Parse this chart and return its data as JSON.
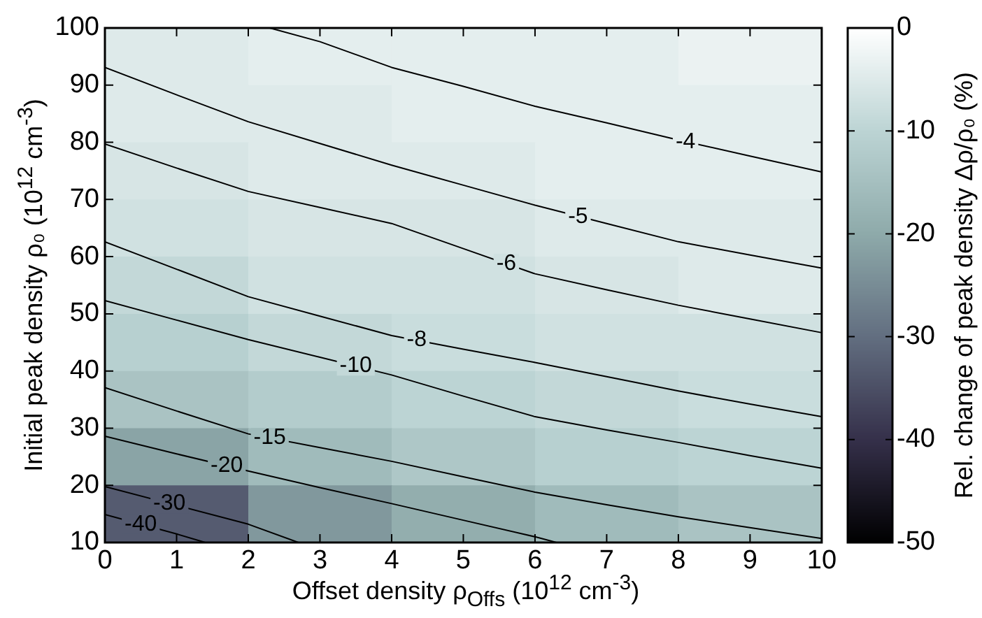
{
  "chart_data": {
    "type": "heatmap",
    "xlabel": "Offset density ρ$_{Offs}$ (10$^{12}$ cm$^{-3}$)",
    "ylabel": "Initial peak density ρ₀ (10$^{12}$ cm$^{-3}$)",
    "clabel": "Rel. change of peak density Δρ/ρ₀ (%)",
    "x": [
      1,
      3,
      5,
      7,
      9
    ],
    "y": [
      95,
      85,
      75,
      65,
      55,
      45,
      35,
      25,
      15
    ],
    "cells": [
      [
        -5,
        -4,
        -4,
        -4,
        -3
      ],
      [
        -5,
        -5,
        -4,
        -4,
        -4
      ],
      [
        -6,
        -5,
        -5,
        -4,
        -4
      ],
      [
        -7,
        -6,
        -6,
        -5,
        -5
      ],
      [
        -9,
        -7,
        -7,
        -6,
        -5
      ],
      [
        -11,
        -9,
        -8,
        -7,
        -7
      ],
      [
        -14,
        -12,
        -10,
        -9,
        -8
      ],
      [
        -21,
        -16,
        -13,
        -11,
        -10
      ],
      [
        -33,
        -23,
        -19,
        -16,
        -14
      ]
    ],
    "clim": [
      -50,
      0
    ],
    "cticks": [
      0,
      -10,
      -20,
      -30,
      -40,
      -50
    ],
    "xlim": [
      0,
      10
    ],
    "xticks": [
      0,
      1,
      2,
      3,
      4,
      5,
      6,
      7,
      8,
      9,
      10
    ],
    "ylim": [
      10,
      100
    ],
    "yticks": [
      10,
      20,
      30,
      40,
      50,
      60,
      70,
      80,
      90,
      100
    ],
    "series": [
      {
        "type": "line",
        "color": "#000000",
        "x": [
          2.3,
          3,
          4,
          5,
          6,
          7,
          8,
          9,
          10
        ],
        "values": [
          100,
          97.6,
          93.1,
          89.8,
          86.3,
          83.4,
          80.4,
          77.6,
          74.8
        ]
      },
      {
        "type": "line",
        "color": "#000000",
        "x": [
          0,
          1,
          2,
          3,
          4,
          5,
          6,
          7,
          8,
          9,
          10
        ],
        "values": [
          93.1,
          88.3,
          83.6,
          79.8,
          76,
          72.5,
          69,
          65.8,
          62.6,
          60.3,
          58
        ]
      },
      {
        "type": "line",
        "color": "#000000",
        "x": [
          0,
          1,
          2,
          3,
          4,
          5,
          6,
          7,
          8,
          9,
          10
        ],
        "values": [
          79.7,
          75.5,
          71.4,
          68.6,
          65.8,
          61.4,
          57,
          54.2,
          51.5,
          49.1,
          46.7
        ]
      },
      {
        "type": "line",
        "color": "#000000",
        "x": [
          0,
          1,
          2,
          3,
          4,
          5,
          6,
          7,
          8,
          9,
          10
        ],
        "values": [
          62.6,
          57.8,
          53,
          49.6,
          46.2,
          43.8,
          41.5,
          39,
          36.5,
          34.2,
          32
        ]
      },
      {
        "type": "line",
        "color": "#000000",
        "x": [
          0,
          1,
          2,
          3,
          4,
          5,
          6,
          7,
          8,
          9,
          10
        ],
        "values": [
          52.3,
          48.9,
          45.5,
          42.4,
          39.3,
          35.6,
          32,
          29.7,
          27.5,
          25.2,
          23
        ]
      },
      {
        "type": "line",
        "color": "#000000",
        "x": [
          0,
          1,
          2,
          3,
          4,
          5,
          6,
          7,
          8,
          9,
          10
        ],
        "values": [
          37.1,
          33,
          29,
          26.6,
          24.2,
          21.5,
          18.8,
          16.6,
          14.5,
          12.6,
          10.7
        ]
      },
      {
        "type": "line",
        "color": "#000000",
        "x": [
          0,
          1,
          2,
          3,
          4,
          5,
          6,
          6.3
        ],
        "values": [
          28.6,
          25.5,
          22.5,
          19.6,
          16.8,
          13.9,
          11,
          10
        ]
      },
      {
        "type": "line",
        "color": "#000000",
        "x": [
          0,
          1,
          2,
          2.7
        ],
        "values": [
          19.8,
          16.5,
          13.2,
          10
        ]
      },
      {
        "type": "line",
        "color": "#000000",
        "x": [
          0,
          1,
          1.4
        ],
        "values": [
          14.9,
          11.5,
          10
        ]
      }
    ],
    "annotations": [
      {
        "text": "-4",
        "x": 8.1,
        "y": 80.1
      },
      {
        "text": "-5",
        "x": 6.6,
        "y": 67
      },
      {
        "text": "-6",
        "x": 5.6,
        "y": 58.8
      },
      {
        "text": "-8",
        "x": 4.35,
        "y": 45.4
      },
      {
        "text": "-10",
        "x": 3.5,
        "y": 40.9
      },
      {
        "text": "-15",
        "x": 2.3,
        "y": 28.3
      },
      {
        "text": "-20",
        "x": 1.7,
        "y": 23.4
      },
      {
        "text": "-30",
        "x": 0.9,
        "y": 16.8
      },
      {
        "text": "-40",
        "x": 0.5,
        "y": 13.2
      }
    ]
  }
}
